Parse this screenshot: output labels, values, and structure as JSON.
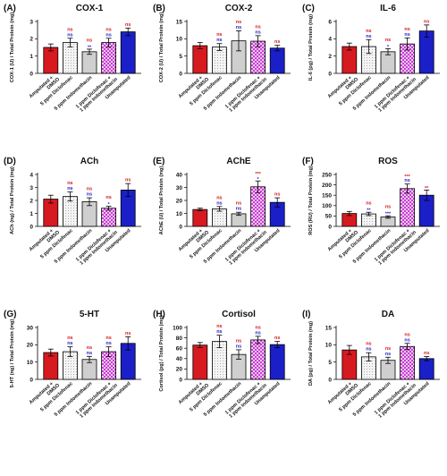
{
  "colors": {
    "amputated": "#d71920",
    "diclofenac": "#f2f2f2",
    "indomethacin": "#cfcfcf",
    "combo": "#c63fd0",
    "unamputated": "#1b1fc8",
    "sig_top": "#d71920",
    "sig_bottom": "#1b1fc8",
    "text": "#111111"
  },
  "shared_categories": [
    "Amputated + DMSO",
    "5 ppm Diclofenac",
    "5 ppm Indomethacin",
    "1 ppm Diclofenac + 1 ppm Indomethacin",
    "Unamputated"
  ],
  "chart_data": [
    {
      "panel": "(A)",
      "title": "COX-1",
      "type": "bar",
      "ylabel": "COX-1 (U) / Total Protein (mg)",
      "ylim": [
        0,
        3
      ],
      "yticks": [
        0,
        1,
        2,
        3
      ],
      "values": [
        1.5,
        1.78,
        1.25,
        1.78,
        2.4
      ],
      "errors": [
        0.2,
        0.25,
        0.15,
        0.25,
        0.22
      ],
      "sig_top": [
        "",
        "ns",
        "ns",
        "ns",
        "ns"
      ],
      "sig_bottom": [
        "",
        "ns",
        "**",
        "ns",
        ""
      ]
    },
    {
      "panel": "(B)",
      "title": "COX-2",
      "type": "bar",
      "ylabel": "COX-2 (U) / Total Protein (mg)",
      "ylim": [
        0,
        15
      ],
      "yticks": [
        0,
        5,
        10,
        15
      ],
      "values": [
        8.0,
        7.6,
        9.4,
        9.3,
        7.3
      ],
      "errors": [
        0.9,
        1.0,
        2.9,
        1.6,
        0.8
      ],
      "sig_top": [
        "",
        "ns",
        "ns",
        "ns",
        "ns"
      ],
      "sig_bottom": [
        "",
        "ns",
        "ns",
        "ns",
        ""
      ]
    },
    {
      "panel": "(C)",
      "title": "IL-6",
      "type": "bar",
      "ylabel": "IL-6 (pg) / Total Protein (mg)",
      "ylim": [
        0,
        6
      ],
      "yticks": [
        0,
        2,
        4,
        6
      ],
      "values": [
        3.1,
        3.1,
        2.5,
        3.4,
        4.9
      ],
      "errors": [
        0.4,
        0.8,
        0.35,
        0.7,
        0.7
      ],
      "sig_top": [
        "",
        "ns",
        "ns",
        "ns",
        "ns"
      ],
      "sig_bottom": [
        "",
        "ns",
        "*",
        "ns",
        ""
      ]
    },
    {
      "panel": "(D)",
      "title": "ACh",
      "type": "bar",
      "ylabel": "ACh (ng) / Total Protein (mg)",
      "ylim": [
        0,
        4
      ],
      "yticks": [
        0,
        1,
        2,
        3,
        4
      ],
      "values": [
        2.1,
        2.3,
        1.9,
        1.4,
        2.8
      ],
      "errors": [
        0.3,
        0.35,
        0.3,
        0.15,
        0.5
      ],
      "sig_top": [
        "",
        "ns",
        "ns",
        "ns",
        "ns"
      ],
      "sig_bottom": [
        "",
        "ns",
        "ns",
        "*",
        ""
      ]
    },
    {
      "panel": "(E)",
      "title": "AChE",
      "type": "bar",
      "ylabel": "AChE (U) / Total Protein (mg)",
      "ylim": [
        0,
        40
      ],
      "yticks": [
        0,
        10,
        20,
        30,
        40
      ],
      "values": [
        13.0,
        13.5,
        9.7,
        30.5,
        18.5
      ],
      "errors": [
        1.0,
        1.8,
        1.2,
        4.5,
        3.5
      ],
      "sig_top": [
        "",
        "ns",
        "ns",
        "***",
        "ns"
      ],
      "sig_bottom": [
        "",
        "ns",
        "ns",
        "*",
        ""
      ]
    },
    {
      "panel": "(F)",
      "title": "ROS",
      "type": "bar",
      "ylabel": "ROS (RU) / Total Protein (mg)",
      "ylim": [
        0,
        250
      ],
      "yticks": [
        0,
        50,
        100,
        150,
        200,
        250
      ],
      "values": [
        62,
        60,
        45,
        182,
        150
      ],
      "errors": [
        10,
        8,
        6,
        22,
        25
      ],
      "sig_top": [
        "",
        "ns",
        "ns",
        "***",
        "**"
      ],
      "sig_bottom": [
        "",
        "**",
        "***",
        "ns",
        ""
      ]
    },
    {
      "panel": "(G)",
      "title": "5-HT",
      "type": "bar",
      "ylabel": "5-HT (ng) / Total Protein (mg)",
      "ylim": [
        0,
        30
      ],
      "yticks": [
        0,
        10,
        20,
        30
      ],
      "values": [
        15.5,
        16.0,
        11.5,
        16.0,
        20.8
      ],
      "errors": [
        2.0,
        2.8,
        1.8,
        2.8,
        3.8
      ],
      "sig_top": [
        "",
        "ns",
        "ns",
        "ns",
        "ns"
      ],
      "sig_bottom": [
        "",
        "ns",
        "ns",
        "ns",
        ""
      ]
    },
    {
      "panel": "(H)",
      "title": "Cortisol",
      "type": "bar",
      "ylabel": "Cortisol (pg) / Total Protein (mg)",
      "ylim": [
        0,
        100
      ],
      "yticks": [
        0,
        20,
        40,
        60,
        80,
        100
      ],
      "values": [
        66,
        73,
        48,
        76,
        67
      ],
      "errors": [
        5,
        12,
        9,
        7,
        6
      ],
      "sig_top": [
        "",
        "ns",
        "ns",
        "ns",
        "ns"
      ],
      "sig_bottom": [
        "",
        "ns",
        "ns",
        "ns",
        ""
      ]
    },
    {
      "panel": "(I)",
      "title": "DA",
      "type": "bar",
      "ylabel": "DA (pg) / Total Protein (mg)",
      "ylim": [
        0,
        15
      ],
      "yticks": [
        0,
        5,
        10,
        15
      ],
      "values": [
        8.5,
        6.5,
        5.5,
        9.5,
        6.0
      ],
      "errors": [
        1.3,
        1.2,
        0.9,
        0.9,
        0.6
      ],
      "sig_top": [
        "",
        "ns",
        "ns",
        "ns",
        "ns"
      ],
      "sig_bottom": [
        "",
        "ns",
        "ns",
        "ns",
        ""
      ]
    }
  ]
}
